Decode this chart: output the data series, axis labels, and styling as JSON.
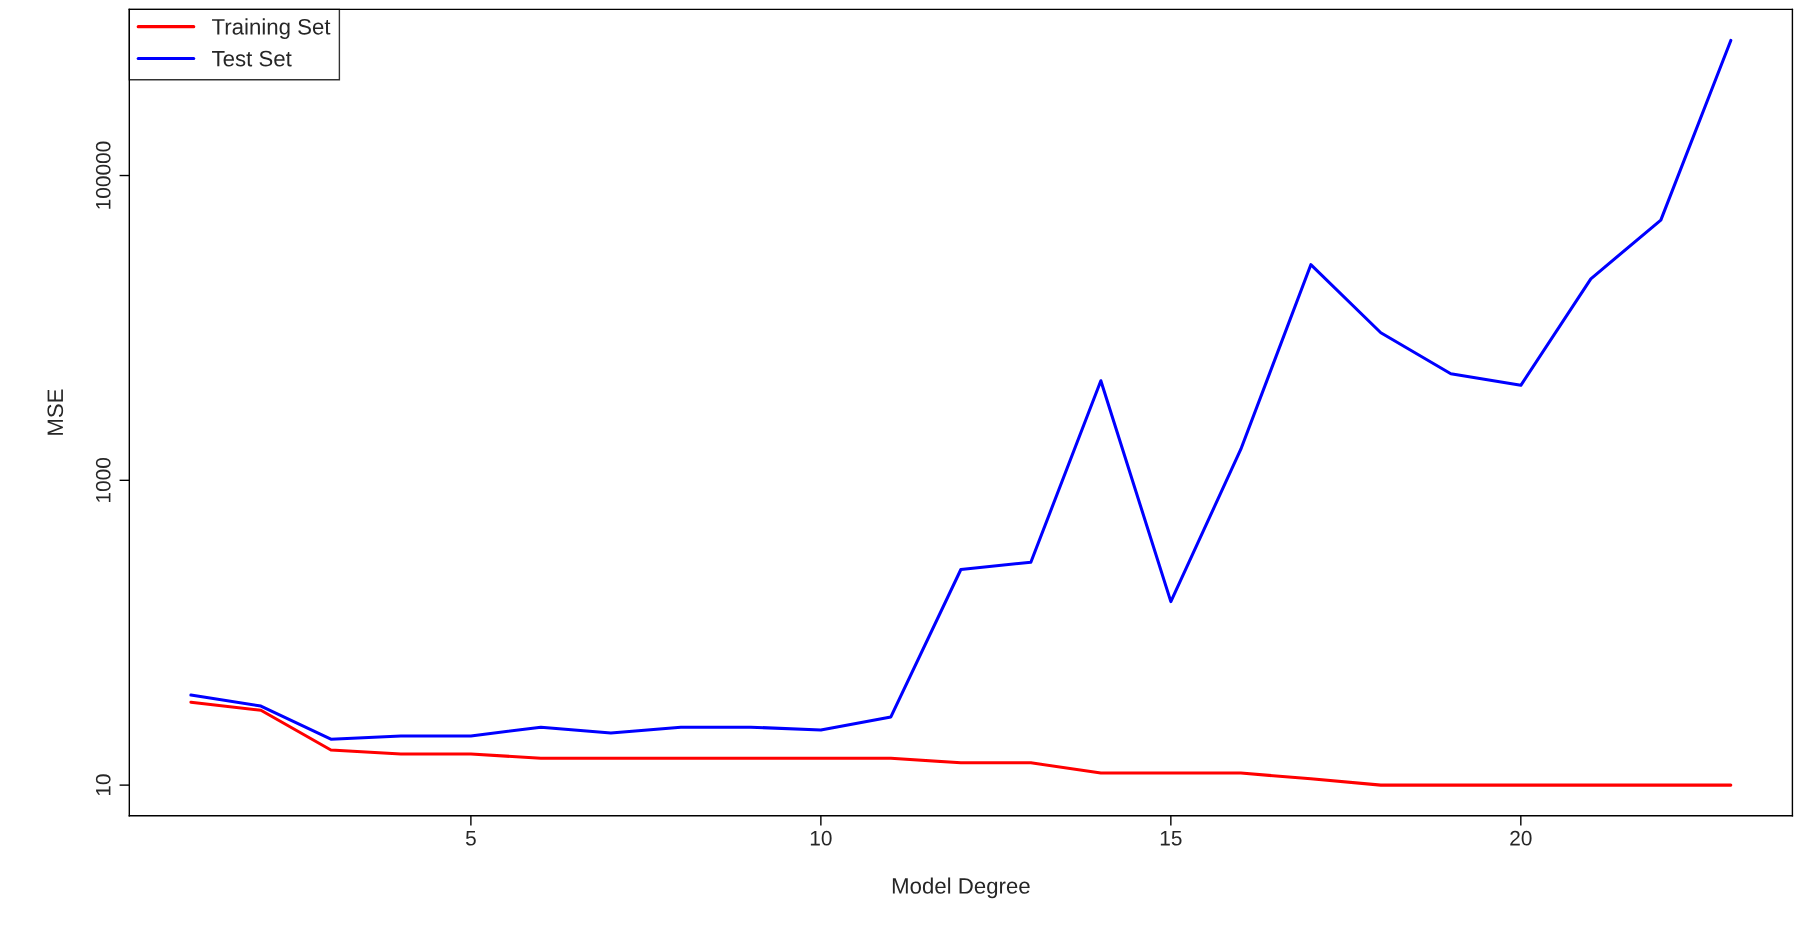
{
  "chart_data": {
    "type": "line",
    "xlabel": "Model Degree",
    "ylabel": "MSE",
    "x": [
      1,
      2,
      3,
      4,
      5,
      6,
      7,
      8,
      9,
      10,
      11,
      12,
      13,
      14,
      15,
      16,
      17,
      18,
      19,
      20,
      21,
      22,
      23
    ],
    "series": [
      {
        "name": "Training Set",
        "color": "#ff0000",
        "values": [
          35,
          31,
          17,
          16,
          16,
          15,
          15,
          15,
          15,
          15,
          15,
          14,
          14,
          12,
          12,
          12,
          11,
          10,
          10,
          10,
          10,
          10,
          10
        ]
      },
      {
        "name": "Test Set",
        "color": "#0000ff",
        "values": [
          39,
          33,
          20,
          21,
          21,
          24,
          22,
          24,
          24,
          23,
          28,
          260,
          290,
          4500,
          160,
          1600,
          26000,
          9300,
          5000,
          4200,
          21000,
          51000,
          770000
        ]
      }
    ],
    "log": "y",
    "xlim": [
      0.12,
      23.88
    ],
    "ylim": [
      6.3,
      1230000
    ],
    "xticks": [
      5,
      10,
      15,
      20
    ],
    "yticks": [
      10,
      1000,
      100000
    ],
    "grid": false,
    "legend": "top left",
    "line_style": "solid",
    "marker": "none"
  }
}
